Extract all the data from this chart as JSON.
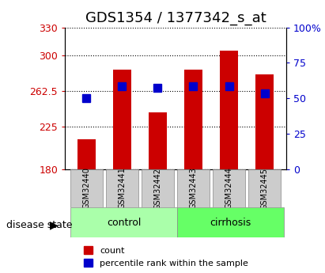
{
  "title": "GDS1354 / 1377342_s_at",
  "categories": [
    "GSM32440",
    "GSM32441",
    "GSM32442",
    "GSM32443",
    "GSM32444",
    "GSM32445"
  ],
  "bar_bottoms": [
    180,
    180,
    180,
    180,
    180,
    180
  ],
  "bar_tops": [
    212,
    285,
    240,
    285,
    305,
    280
  ],
  "blue_y": [
    255,
    268,
    266,
    268,
    268,
    260
  ],
  "ylim_left": [
    180,
    330
  ],
  "ylim_right": [
    0,
    100
  ],
  "yticks_left": [
    180,
    225,
    262.5,
    300,
    330
  ],
  "ytick_labels_left": [
    "180",
    "225",
    "262.5",
    "300",
    "330"
  ],
  "yticks_right": [
    0,
    25,
    50,
    75,
    100
  ],
  "ytick_labels_right": [
    "0",
    "25",
    "50",
    "75",
    "100%"
  ],
  "bar_color": "#cc0000",
  "blue_color": "#0000cc",
  "group_labels": [
    "control",
    "cirrhosis"
  ],
  "ctrl_color": "#aaffaa",
  "cirr_color": "#66ff66",
  "xlabel_disease": "disease state",
  "legend_items": [
    "count",
    "percentile rank within the sample"
  ],
  "bar_width": 0.5,
  "tick_color_left": "#cc0000",
  "tick_color_right": "#0000cc",
  "title_fontsize": 13,
  "axis_fontsize": 9,
  "blue_marker_size": 7
}
